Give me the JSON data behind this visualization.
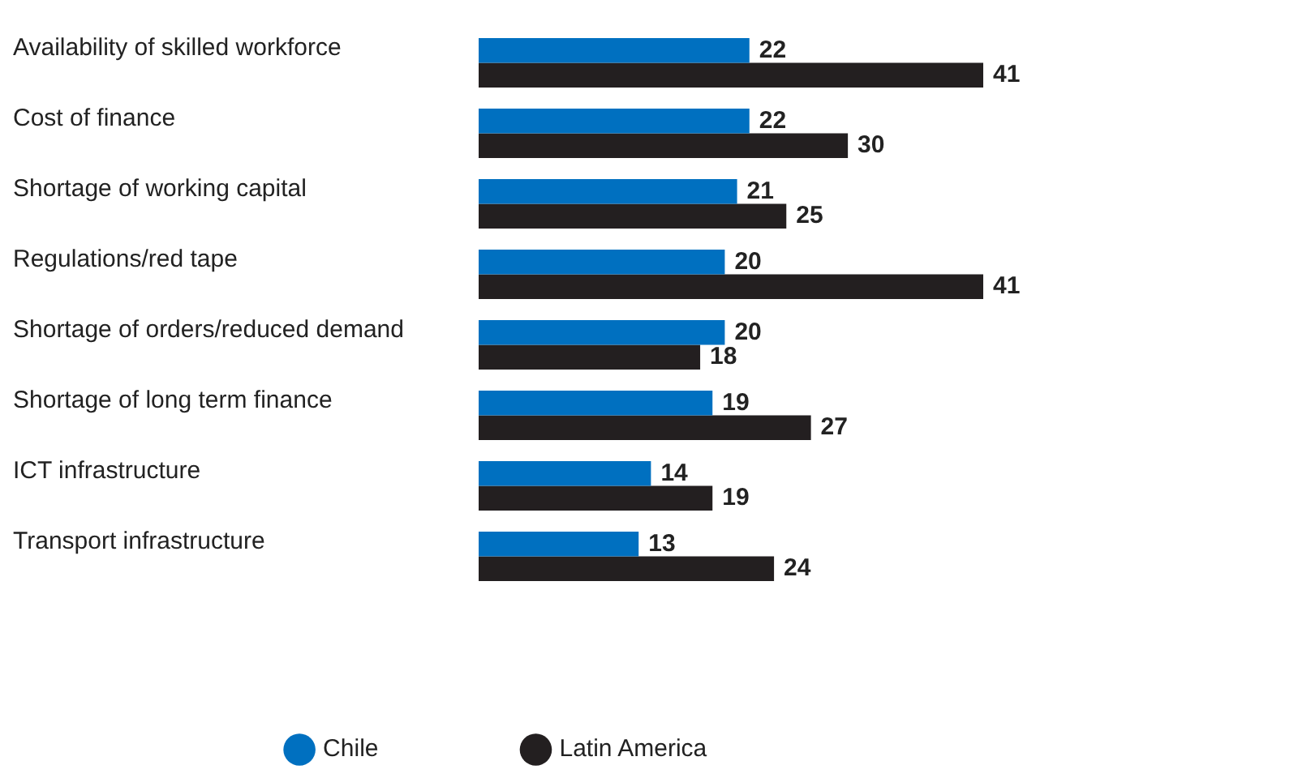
{
  "chart_data": {
    "type": "bar",
    "orientation": "horizontal",
    "data_labels": true,
    "legend": "bottom",
    "grid": false,
    "marker": "circle",
    "categories": [
      "Availability of skilled workforce",
      "Cost of finance",
      "Shortage of working capital",
      "Regulations/red tape",
      "Shortage of orders/reduced demand",
      "Shortage of long term finance",
      "ICT infrastructure",
      "Transport infrastructure"
    ],
    "series": [
      {
        "name": "Chile",
        "color": "#0070c0",
        "values": [
          22,
          22,
          21,
          20,
          20,
          19,
          14,
          13
        ]
      },
      {
        "name": "Latin America",
        "color": "#231f20",
        "values": [
          41,
          30,
          25,
          41,
          18,
          27,
          19,
          24
        ]
      }
    ]
  }
}
